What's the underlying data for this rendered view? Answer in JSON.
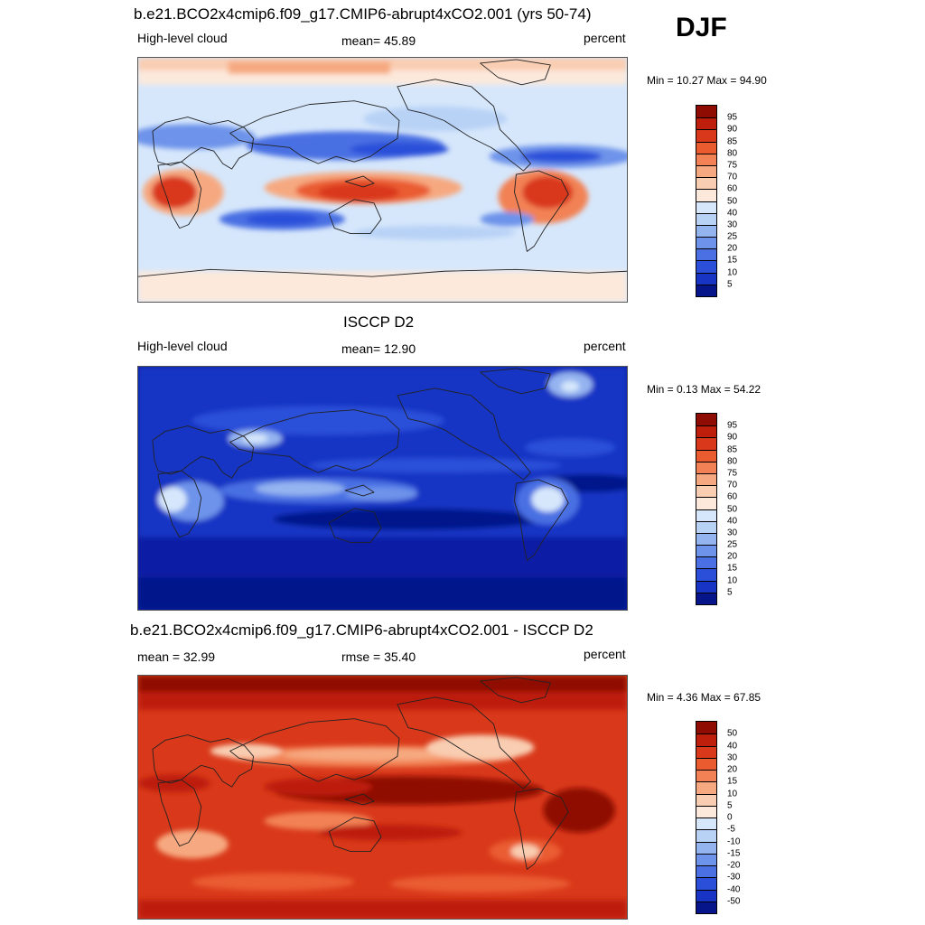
{
  "season": "DJF",
  "colors": {
    "warm": [
      "#fce9dc",
      "#f9cdb1",
      "#f6a980",
      "#f28255",
      "#ea5c30",
      "#d9391a",
      "#bd1f0c",
      "#8f0c02"
    ],
    "cool": [
      "#d6e7fb",
      "#b8d2f6",
      "#94b4f0",
      "#6d93ea",
      "#4a70e3",
      "#2b4fd9",
      "#1734c4",
      "#0b1fa4",
      "#06168a"
    ]
  },
  "panels": [
    {
      "title": "b.e21.BCO2x4cmip6.f09_g17.CMIP6-abrupt4xCO2.001 (yrs 50-74)",
      "left_label": "High-level cloud",
      "center_label": "mean=  45.89",
      "right_label": "percent",
      "minmax": "Min =  10.27 Max =  94.90",
      "colorbar": {
        "labels": [
          "95",
          "90",
          "85",
          "80",
          "75",
          "70",
          "60",
          "50",
          "40",
          "30",
          "25",
          "20",
          "15",
          "10",
          "5"
        ],
        "colors": [
          "#8f0c02",
          "#bd1f0c",
          "#d9391a",
          "#ea5c30",
          "#f28255",
          "#f6a980",
          "#f9cdb1",
          "#fce9dc",
          "#d6e7fb",
          "#b8d2f6",
          "#94b4f0",
          "#6d93ea",
          "#4a70e3",
          "#2b4fd9",
          "#1734c4",
          "#06168a"
        ]
      }
    },
    {
      "title": "ISCCP D2",
      "left_label": "High-level cloud",
      "center_label": "mean=  12.90",
      "right_label": "percent",
      "minmax": "Min =   0.13 Max =  54.22",
      "colorbar": {
        "labels": [
          "95",
          "90",
          "85",
          "80",
          "75",
          "70",
          "60",
          "50",
          "40",
          "30",
          "25",
          "20",
          "15",
          "10",
          "5"
        ],
        "colors": [
          "#8f0c02",
          "#bd1f0c",
          "#d9391a",
          "#ea5c30",
          "#f28255",
          "#f6a980",
          "#f9cdb1",
          "#fce9dc",
          "#d6e7fb",
          "#b8d2f6",
          "#94b4f0",
          "#6d93ea",
          "#4a70e3",
          "#2b4fd9",
          "#1734c4",
          "#06168a"
        ]
      }
    },
    {
      "title": "b.e21.BCO2x4cmip6.f09_g17.CMIP6-abrupt4xCO2.001 - ISCCP D2",
      "left_label": "mean =  32.99",
      "center_label": "rmse =  35.40",
      "right_label": "percent",
      "minmax": "Min =   4.36 Max =  67.85",
      "colorbar": {
        "labels": [
          "50",
          "40",
          "30",
          "20",
          "15",
          "10",
          "5",
          "0",
          "-5",
          "-10",
          "-15",
          "-20",
          "-30",
          "-40",
          "-50"
        ],
        "colors": [
          "#8f0c02",
          "#bd1f0c",
          "#d9391a",
          "#ea5c30",
          "#f28255",
          "#f6a980",
          "#f9cdb1",
          "#fce9dc",
          "#d6e7fb",
          "#b8d2f6",
          "#94b4f0",
          "#6d93ea",
          "#4a70e3",
          "#2b4fd9",
          "#1734c4",
          "#06168a"
        ]
      }
    }
  ]
}
